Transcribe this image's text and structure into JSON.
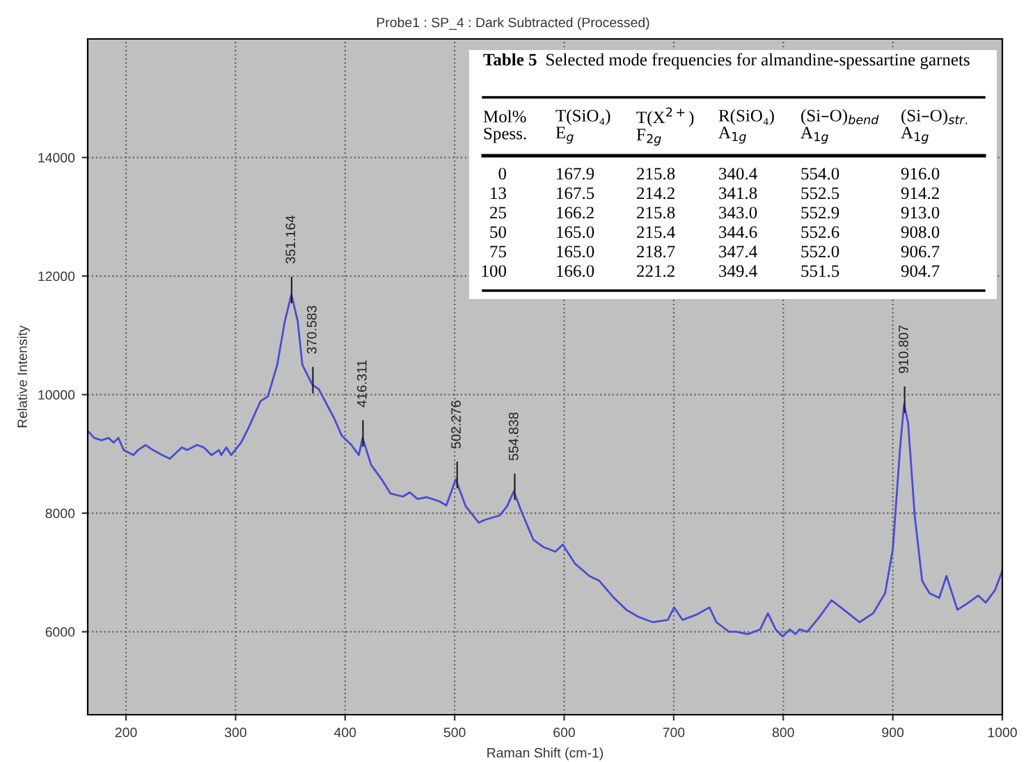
{
  "chart_data": {
    "type": "line",
    "title": "Probe1 : SP_4 : Dark Subtracted (Processed)",
    "xlabel": "Raman Shift (cm-1)",
    "ylabel": "Relative Intensity",
    "xlim": [
      165,
      1000
    ],
    "ylim": [
      4600,
      16000
    ],
    "xticks": [
      200,
      300,
      400,
      500,
      600,
      700,
      800,
      900,
      1000
    ],
    "yticks": [
      6000,
      8000,
      10000,
      12000,
      14000
    ],
    "grid": true,
    "legend": false,
    "marker": "none",
    "line_style": "solid",
    "series": [
      {
        "color": "#4b4bd0",
        "x": [
          165,
          171,
          177.7,
          184,
          188.8,
          193,
          197.8,
          206.7,
          211,
          217.8,
          224.6,
          233,
          240,
          251,
          255.8,
          264.7,
          271,
          278,
          284.8,
          287,
          291.5,
          296,
          305,
          311.6,
          322.8,
          329.5,
          338,
          345,
          351,
          356.7,
          361,
          370,
          376,
          390,
          396.9,
          405.8,
          412.5,
          416,
          423.6,
          434.8,
          441.5,
          452.7,
          459,
          466,
          474.5,
          486,
          492.4,
          501,
          510,
          522,
          528,
          541,
          548,
          554,
          560.7,
          571.9,
          580.8,
          592,
          598.7,
          609.8,
          623,
          632,
          645.5,
          656.7,
          667.8,
          681,
          694.6,
          700.4,
          708,
          721,
          732.6,
          739,
          750.4,
          757,
          768,
          779,
          786,
          793,
          799.5,
          806,
          811,
          815,
          822,
          833,
          844,
          855.4,
          869.6,
          882,
          893,
          900,
          906.7,
          910.3,
          914,
          920,
          926.8,
          933.5,
          942.4,
          949,
          959,
          969,
          978,
          984.8,
          993.3,
          1000
        ],
        "values": [
          9390,
          9270,
          9230,
          9270,
          9190,
          9270,
          9065,
          8980,
          9065,
          9150,
          9065,
          8980,
          8920,
          9110,
          9065,
          9150,
          9110,
          8980,
          9065,
          8980,
          9110,
          8980,
          9190,
          9430,
          9890,
          9970,
          10500,
          11240,
          11690,
          11240,
          10500,
          10170,
          10090,
          9600,
          9310,
          9150,
          8980,
          9270,
          8820,
          8530,
          8330,
          8280,
          8350,
          8240,
          8270,
          8200,
          8130,
          8570,
          8120,
          7840,
          7890,
          7960,
          8120,
          8370,
          8040,
          7550,
          7430,
          7350,
          7470,
          7150,
          6940,
          6860,
          6570,
          6370,
          6250,
          6160,
          6200,
          6410,
          6200,
          6290,
          6410,
          6160,
          6000,
          6000,
          5960,
          6040,
          6310,
          6040,
          5920,
          6040,
          5960,
          6040,
          6000,
          6250,
          6530,
          6370,
          6160,
          6310,
          6650,
          7390,
          9110,
          9840,
          9520,
          7960,
          6860,
          6650,
          6570,
          6940,
          6370,
          6490,
          6610,
          6490,
          6700,
          7030
        ]
      }
    ],
    "annotations": [
      {
        "text": "351.164",
        "x": 351.164,
        "y": 11690
      },
      {
        "text": "370.583",
        "x": 370.583,
        "y": 10170
      },
      {
        "text": "416.311",
        "x": 416.311,
        "y": 9270
      },
      {
        "text": "502.276",
        "x": 502.276,
        "y": 8570
      },
      {
        "text": "554.838",
        "x": 554.838,
        "y": 8370
      },
      {
        "text": "910.807",
        "x": 910.807,
        "y": 9840
      },
      "Table 5",
      "Selected mode frequencies for almandine-spessartine garnets",
      "Mol%\nSpess.",
      "T(SiO₄)\nE$_{g}$",
      "T(X$^{2+}$)\nF$_{2g}$",
      "R(SiO₄)\nA$_{1g}$",
      "(Si–O)$_{bend}$\nA$_{1g}$",
      "(Si–O)$_{str.}$\nA$_{1g}$",
      "0",
      "167.9",
      "215.8",
      "340.4",
      "554.0",
      "916.0",
      "13",
      "167.5",
      "214.2",
      "341.8",
      "552.5",
      "914.2",
      "25",
      "166.2",
      "215.8",
      "343.0",
      "552.9",
      "913.0",
      "50",
      "165.0",
      "215.4",
      "344.6",
      "552.6",
      "908.0",
      "75",
      "165.0",
      "218.7",
      "347.4",
      "552.0",
      "906.7",
      "100",
      "166.0",
      "221.2",
      "349.4",
      "551.5",
      "904.7"
    ]
  }
}
